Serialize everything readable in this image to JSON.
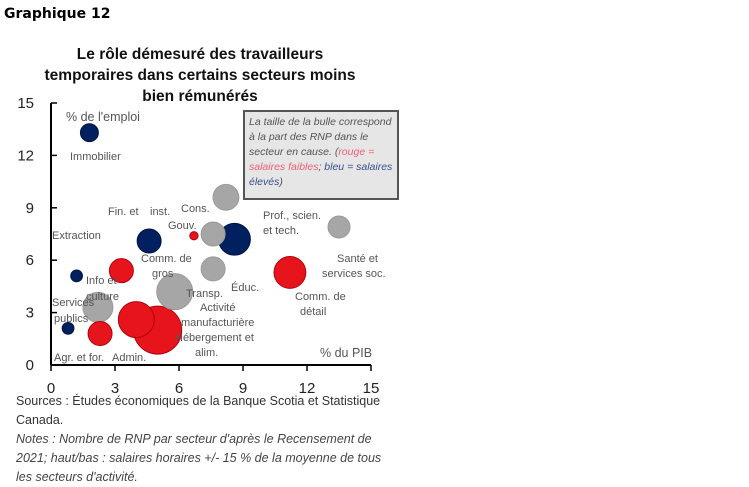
{
  "header": "Graphique 12",
  "chart_data": {
    "type": "scatter",
    "title": "Le rôle démesuré des travailleurs temporaires dans certains secteurs moins bien rémunérés",
    "xlabel": "% du PIB",
    "ylabel": "% de l'emploi",
    "xlim": [
      0,
      15
    ],
    "ylim": [
      0,
      15
    ],
    "xticks": [
      "0",
      "3",
      "6",
      "9",
      "12",
      "15"
    ],
    "yticks": [
      "0",
      "3",
      "6",
      "9",
      "12",
      "15"
    ],
    "colors": {
      "low": "#e8141c",
      "high": "#002060",
      "mid": "#a6a6a6"
    },
    "points": [
      {
        "label": "Immobilier",
        "x": 1.8,
        "y": 13.3,
        "size": 14,
        "wage": "high"
      },
      {
        "label": "Fin. et inst.",
        "x": 4.6,
        "y": 7.1,
        "size": 25,
        "wage": "high"
      },
      {
        "label": "Extraction",
        "x": 1.2,
        "y": 5.1,
        "size": 6,
        "wage": "high"
      },
      {
        "label": "Services publics",
        "x": 0.8,
        "y": 2.1,
        "size": 6,
        "wage": "high"
      },
      {
        "label": "Info et culture",
        "x": 2.2,
        "y": 3.3,
        "size": 39,
        "wage": "mid"
      },
      {
        "label": "Comm. de gros",
        "x": 3.3,
        "y": 5.4,
        "size": 25,
        "wage": "low"
      },
      {
        "label": "Agr. et for.",
        "x": 2.3,
        "y": 1.8,
        "size": 25,
        "wage": "low"
      },
      {
        "label": "Admin.",
        "x": 4.0,
        "y": 2.6,
        "size": 56,
        "wage": "low"
      },
      {
        "label": "Hébergement et alim.",
        "x": 5.0,
        "y": 2.0,
        "size": 100,
        "wage": "low"
      },
      {
        "label": "Transp.",
        "x": 5.8,
        "y": 4.2,
        "size": 56,
        "wage": "mid"
      },
      {
        "label": "Gouv.",
        "x": 6.7,
        "y": 7.4,
        "size": 3,
        "wage": "low"
      },
      {
        "label": "Cons.",
        "x": 7.6,
        "y": 7.5,
        "size": 25,
        "wage": "mid"
      },
      {
        "label": "Activité manufacturière",
        "x": 8.2,
        "y": 9.6,
        "size": 29,
        "wage": "mid"
      },
      {
        "label": "Éduc.",
        "x": 7.6,
        "y": 5.5,
        "size": 25,
        "wage": "mid"
      },
      {
        "label": "Prof., scien. et tech.",
        "x": 8.6,
        "y": 7.2,
        "size": 44,
        "wage": "high"
      },
      {
        "label": "Comm. de détail",
        "x": 11.2,
        "y": 5.3,
        "size": 44,
        "wage": "low"
      },
      {
        "label": "Santé et services soc.",
        "x": 13.5,
        "y": 7.9,
        "size": 21,
        "wage": "mid"
      }
    ]
  },
  "legend": {
    "line1": "La taille de la bulle correspond à la part des RNP dans le secteur en cause.",
    "open": "(",
    "red_text": "rouge = salaires faibles",
    "sep": "; ",
    "blue_text": "bleu = salaires élevés",
    "close": ")"
  },
  "sources": "Sources : Études économiques de la Banque Scotia et Statistique Canada.",
  "notes": "Notes : Nombre de RNP par secteur d'après le Recensement de 2021; haut/bas : salaires horaires +/- 15 % de la moyenne de tous les secteurs d'activité."
}
